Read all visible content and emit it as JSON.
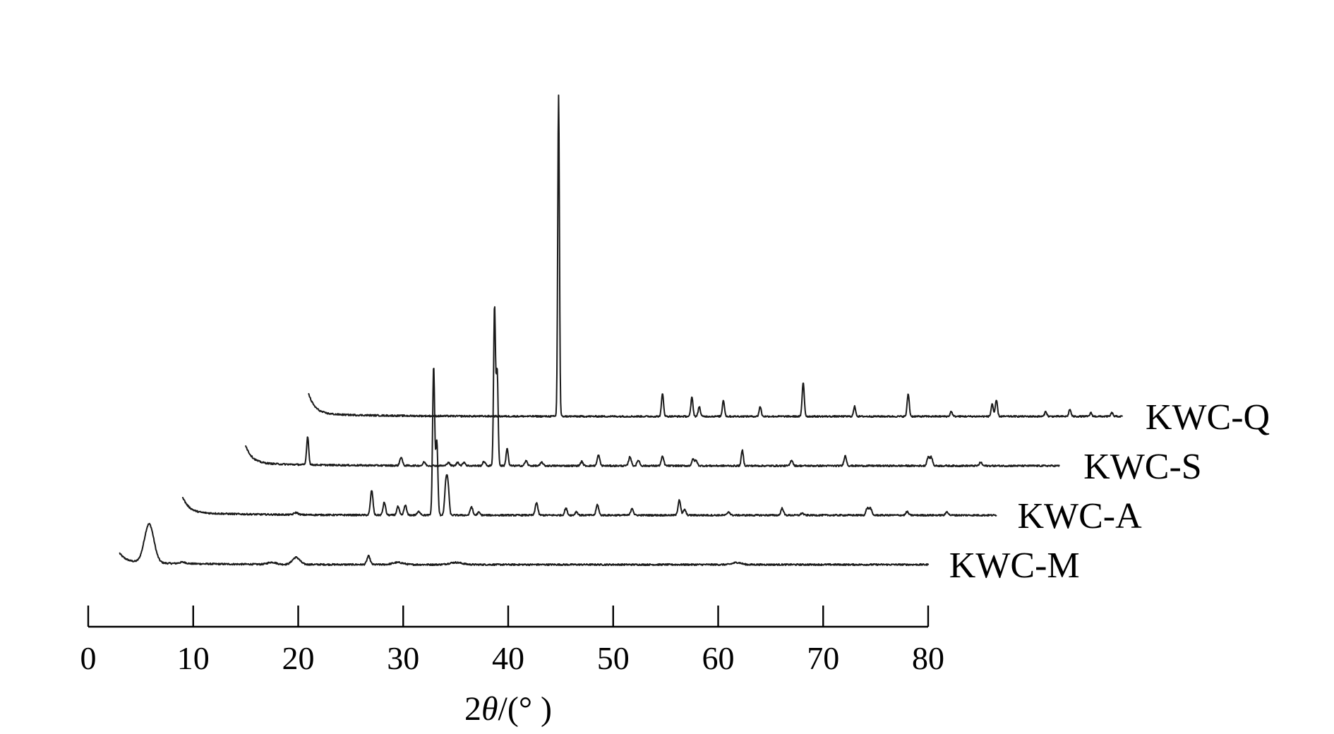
{
  "chart_data": {
    "type": "line",
    "title": "",
    "xlabel_prefix": "2",
    "xlabel_symbol": "θ",
    "xlabel_suffix": "/(° )",
    "ylabel": "",
    "xlim": [
      0,
      80
    ],
    "x_ticks": [
      0,
      10,
      20,
      30,
      40,
      50,
      60,
      70,
      80
    ],
    "y_axis_shown": false,
    "grid": false,
    "legend": "inline labels at right end of each trace",
    "stacked_offset_series": true,
    "series": [
      {
        "name": "KWC-M",
        "x_start": 3,
        "x_end": 80,
        "label_x": 82,
        "baseline": 0,
        "start_rise": 12,
        "peaks": [
          [
            5.8,
            55,
            0.45
          ],
          [
            9,
            2,
            0.3
          ],
          [
            17.5,
            3,
            0.4
          ],
          [
            19.8,
            10,
            0.35
          ],
          [
            26.7,
            12,
            0.15
          ],
          [
            29.5,
            3,
            0.5
          ],
          [
            35,
            3,
            0.6
          ],
          [
            61.8,
            3,
            0.4
          ]
        ]
      },
      {
        "name": "KWC-A",
        "x_start": 9,
        "x_end": 86.5,
        "label_x": 88.5,
        "baseline": 70,
        "start_rise": 22,
        "peaks": [
          [
            19.8,
            3,
            0.2
          ],
          [
            27,
            35,
            0.12
          ],
          [
            28.2,
            18,
            0.12
          ],
          [
            29.5,
            12,
            0.12
          ],
          [
            30.2,
            14,
            0.12
          ],
          [
            31.5,
            5,
            0.15
          ],
          [
            32.9,
            210,
            0.1
          ],
          [
            33.2,
            105,
            0.1
          ],
          [
            34.1,
            52,
            0.13
          ],
          [
            34.3,
            28,
            0.1
          ],
          [
            36.5,
            12,
            0.12
          ],
          [
            37.2,
            4,
            0.12
          ],
          [
            42.7,
            18,
            0.12
          ],
          [
            45.5,
            10,
            0.12
          ],
          [
            46.5,
            5,
            0.12
          ],
          [
            48.5,
            15,
            0.12
          ],
          [
            51.8,
            10,
            0.12
          ],
          [
            56.3,
            22,
            0.12
          ],
          [
            56.8,
            8,
            0.12
          ],
          [
            61,
            5,
            0.12
          ],
          [
            66.1,
            10,
            0.12
          ],
          [
            68,
            3,
            0.12
          ],
          [
            74.2,
            10,
            0.12
          ],
          [
            74.5,
            10,
            0.12
          ],
          [
            78,
            5,
            0.12
          ],
          [
            81.8,
            5,
            0.12
          ]
        ]
      },
      {
        "name": "KWC-S",
        "x_start": 15,
        "x_end": 92.5,
        "label_x": 94.8,
        "baseline": 140,
        "start_rise": 25,
        "peaks": [
          [
            20.9,
            40,
            0.1
          ],
          [
            29.8,
            12,
            0.12
          ],
          [
            32,
            5,
            0.12
          ],
          [
            34.3,
            5,
            0.12
          ],
          [
            35.2,
            5,
            0.12
          ],
          [
            35.8,
            5,
            0.12
          ],
          [
            37.7,
            6,
            0.12
          ],
          [
            38.7,
            225,
            0.09
          ],
          [
            38.95,
            135,
            0.09
          ],
          [
            39.9,
            25,
            0.1
          ],
          [
            41.7,
            7,
            0.12
          ],
          [
            43.2,
            5,
            0.12
          ],
          [
            47,
            6,
            0.12
          ],
          [
            48.6,
            15,
            0.12
          ],
          [
            51.6,
            13,
            0.12
          ],
          [
            52.4,
            8,
            0.12
          ],
          [
            54.7,
            13,
            0.12
          ],
          [
            57.6,
            9,
            0.12
          ],
          [
            57.9,
            7,
            0.12
          ],
          [
            62.3,
            22,
            0.1
          ],
          [
            67,
            8,
            0.12
          ],
          [
            72.1,
            14,
            0.12
          ],
          [
            80,
            12,
            0.12
          ],
          [
            80.3,
            12,
            0.12
          ],
          [
            85,
            5,
            0.12
          ]
        ]
      },
      {
        "name": "KWC-Q",
        "x_start": 21,
        "x_end": 98.5,
        "label_x": 100.7,
        "baseline": 210,
        "start_rise": 28,
        "peaks": [
          [
            44.8,
            455,
            0.08
          ],
          [
            54.7,
            32,
            0.1
          ],
          [
            57.5,
            27,
            0.1
          ],
          [
            58.2,
            14,
            0.1
          ],
          [
            60.5,
            23,
            0.1
          ],
          [
            64,
            14,
            0.1
          ],
          [
            68.1,
            48,
            0.1
          ],
          [
            73,
            14,
            0.1
          ],
          [
            78.1,
            32,
            0.1
          ],
          [
            82.2,
            7,
            0.1
          ],
          [
            86.1,
            18,
            0.1
          ],
          [
            86.5,
            23,
            0.1
          ],
          [
            91.2,
            7,
            0.1
          ],
          [
            93.5,
            10,
            0.1
          ],
          [
            95.5,
            5,
            0.1
          ],
          [
            97.5,
            5,
            0.1
          ]
        ]
      }
    ]
  }
}
